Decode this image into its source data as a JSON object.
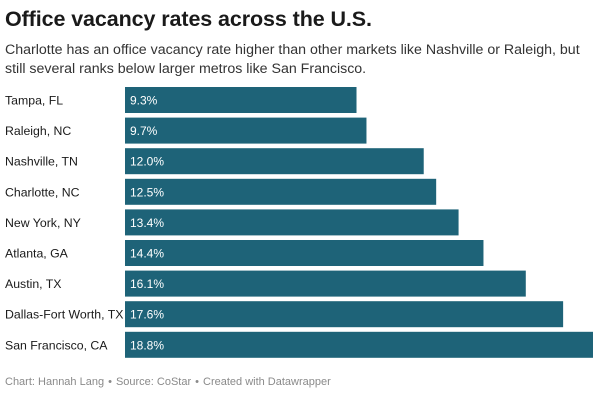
{
  "title": "Office vacancy rates across the U.S.",
  "subtitle": "Charlotte has an office vacancy rate higher than other markets like Nashville or Raleigh, but still several ranks below larger metros like San Francisco.",
  "footer": {
    "chart_credit": "Chart: Hannah Lang",
    "source": "Source: CoStar",
    "created_with": "Created with Datawrapper",
    "separator": "•"
  },
  "colors": {
    "bar": "#1e6378"
  },
  "chart_data": {
    "type": "bar",
    "orientation": "horizontal",
    "categories": [
      "Tampa, FL",
      "Raleigh, NC",
      "Nashville, TN",
      "Charlotte, NC",
      "New York, NY",
      "Atlanta, GA",
      "Austin, TX",
      "Dallas-Fort Worth, TX",
      "San Francisco, CA"
    ],
    "values": [
      9.3,
      9.7,
      12.0,
      12.5,
      13.4,
      14.4,
      16.1,
      17.6,
      18.8
    ],
    "value_labels": [
      "9.3%",
      "9.7%",
      "12.0%",
      "12.5%",
      "13.4%",
      "14.4%",
      "16.1%",
      "17.6%",
      "18.8%"
    ],
    "xlim": [
      0,
      18.8
    ],
    "grid": false
  }
}
